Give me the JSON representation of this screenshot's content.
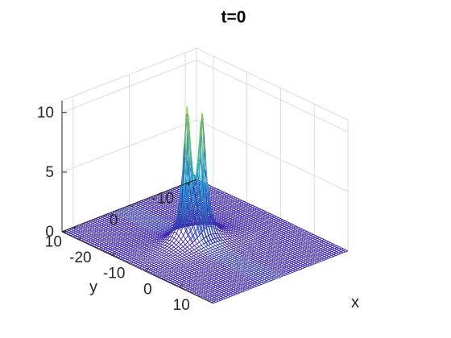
{
  "chart_data": {
    "type": "surface",
    "title": "t=0",
    "xlabel": "x",
    "ylabel": "y",
    "zlabel": "",
    "xlim": [
      -25,
      20
    ],
    "ylim": [
      -12,
      12
    ],
    "zlim": [
      0,
      11
    ],
    "xticks": [
      -20,
      -10,
      0,
      10
    ],
    "yticks": [
      -10,
      0,
      10
    ],
    "zticks": [
      0,
      5,
      10
    ],
    "xtick_labels": [
      "-20",
      "-10",
      "0",
      "10"
    ],
    "ytick_labels": [
      "-10",
      "0",
      "10"
    ],
    "ztick_labels": [
      "0",
      "5",
      "10"
    ],
    "grid": true,
    "colormap": "parula",
    "mesh": "wireframe",
    "peaks": [
      {
        "x": -4.5,
        "y": 2.0,
        "z": 10.6
      },
      {
        "x": -2.5,
        "y": 0.5,
        "z": 10.0
      }
    ],
    "baseline_z": 0,
    "colors": {
      "low": "#3e26a8",
      "mid": "#1fa9d9",
      "high": "#8cd34d",
      "axes": "#262626",
      "grid": "#dcdcdc"
    }
  }
}
